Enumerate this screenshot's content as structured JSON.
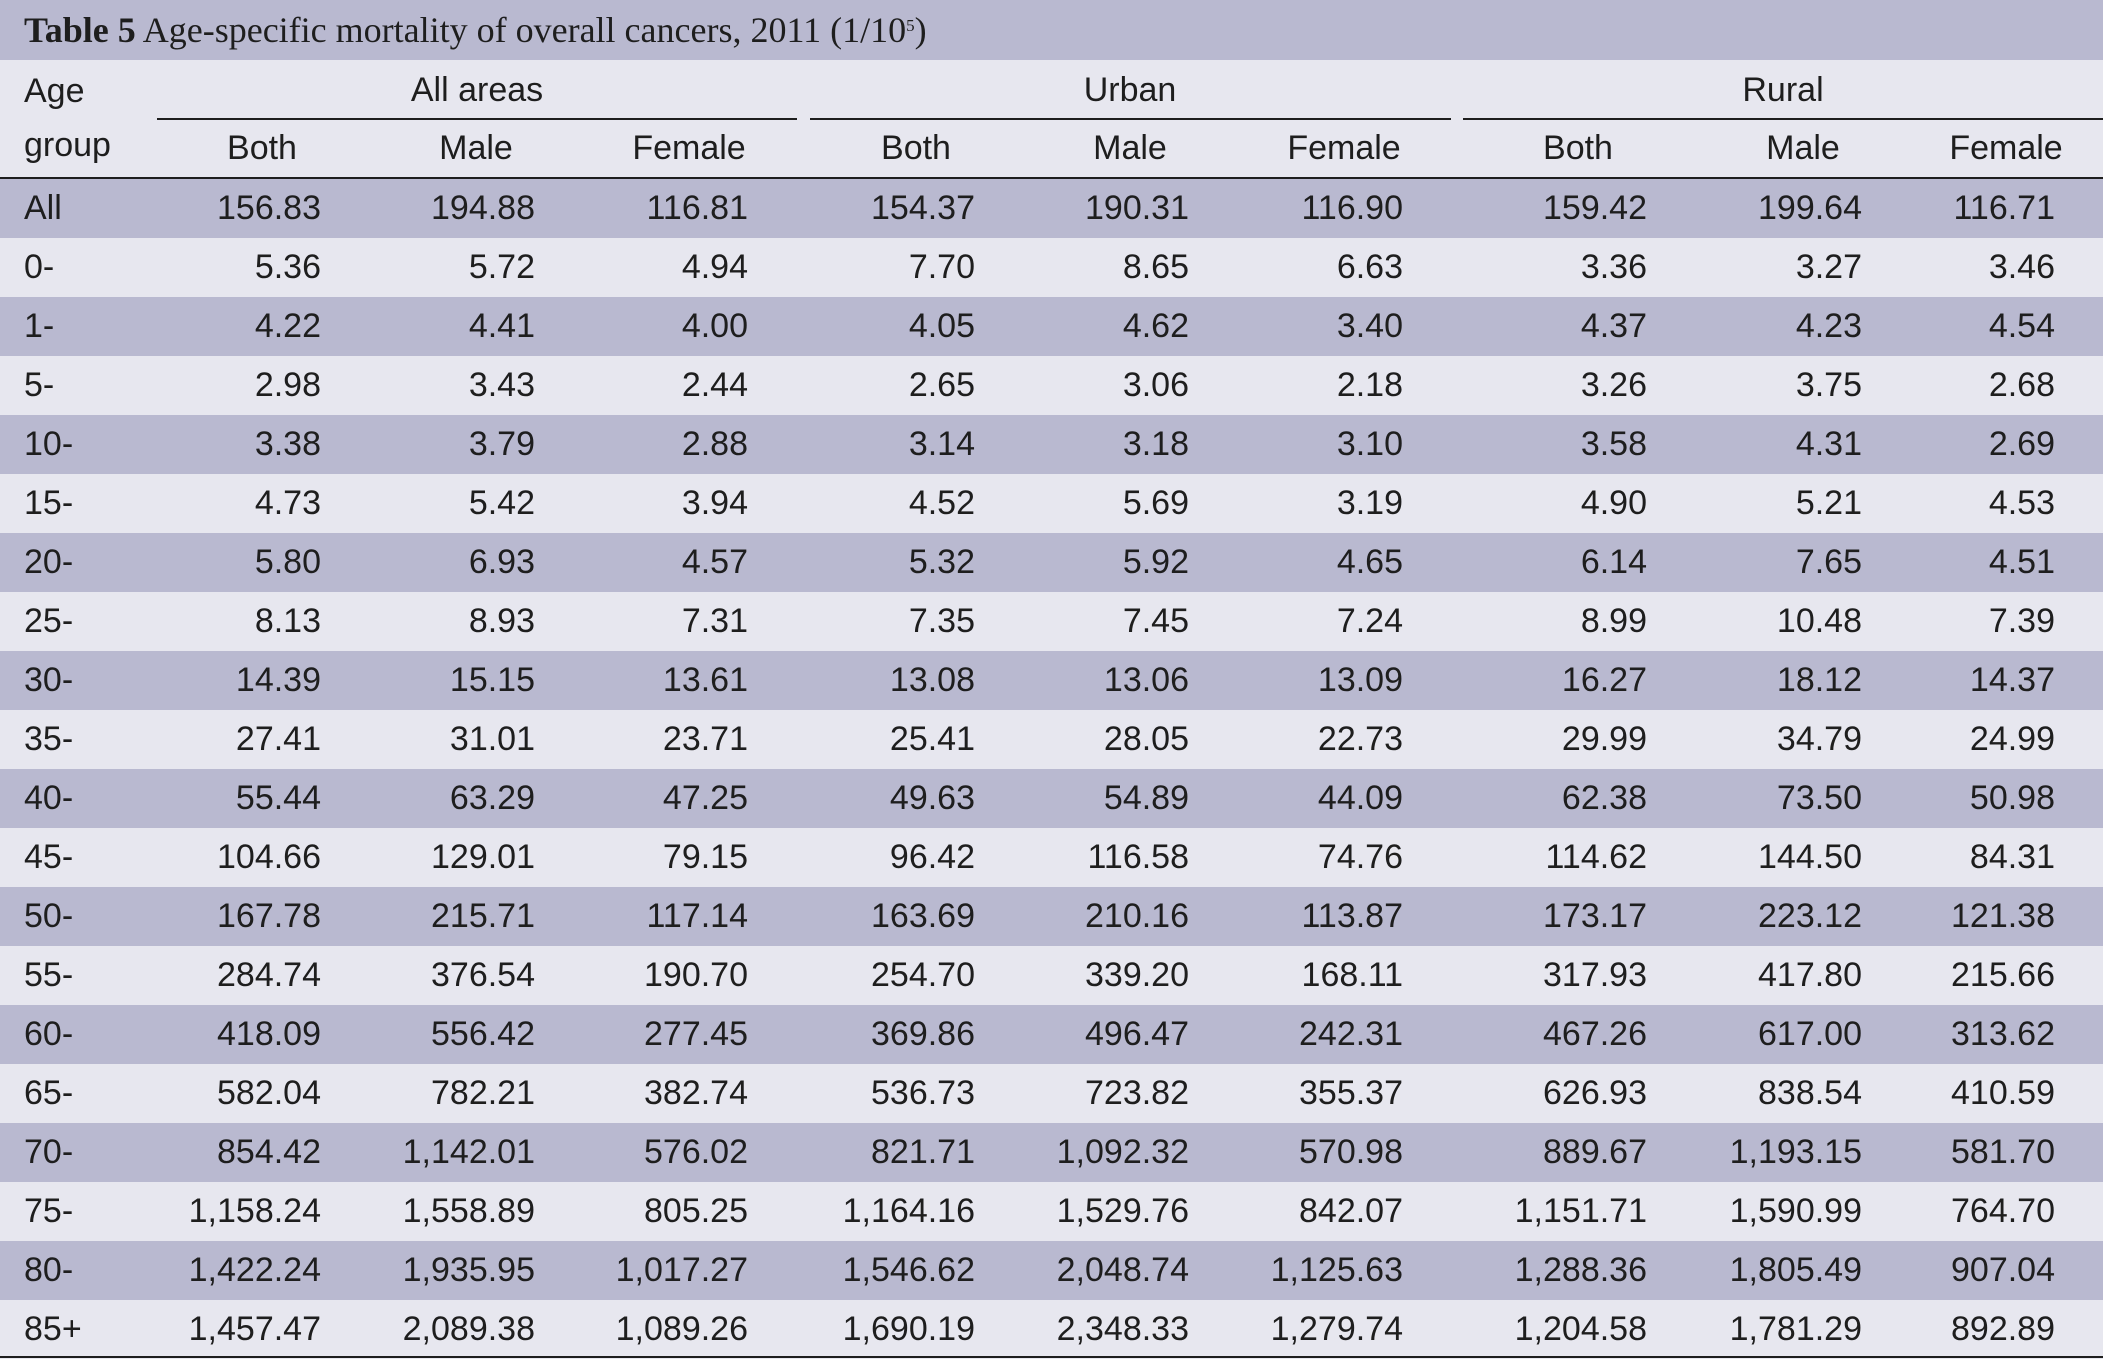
{
  "table": {
    "caption_number": "Table 5",
    "caption_text": "Age-specific mortality of overall cancers, 2011 (1/10",
    "caption_sup": "5",
    "caption_close": ")",
    "row_header_line1": "Age",
    "row_header_line2": "group",
    "groups": [
      "All areas",
      "Urban",
      "Rural"
    ],
    "subheaders": [
      "Both",
      "Male",
      "Female",
      "Both",
      "Male",
      "Female",
      "Both",
      "Male",
      "Female"
    ],
    "rows": [
      {
        "label": "All",
        "values": [
          "156.83",
          "194.88",
          "116.81",
          "154.37",
          "190.31",
          "116.90",
          "159.42",
          "199.64",
          "116.71"
        ]
      },
      {
        "label": "0-",
        "values": [
          "5.36",
          "5.72",
          "4.94",
          "7.70",
          "8.65",
          "6.63",
          "3.36",
          "3.27",
          "3.46"
        ]
      },
      {
        "label": "1-",
        "values": [
          "4.22",
          "4.41",
          "4.00",
          "4.05",
          "4.62",
          "3.40",
          "4.37",
          "4.23",
          "4.54"
        ]
      },
      {
        "label": "5-",
        "values": [
          "2.98",
          "3.43",
          "2.44",
          "2.65",
          "3.06",
          "2.18",
          "3.26",
          "3.75",
          "2.68"
        ]
      },
      {
        "label": "10-",
        "values": [
          "3.38",
          "3.79",
          "2.88",
          "3.14",
          "3.18",
          "3.10",
          "3.58",
          "4.31",
          "2.69"
        ]
      },
      {
        "label": "15-",
        "values": [
          "4.73",
          "5.42",
          "3.94",
          "4.52",
          "5.69",
          "3.19",
          "4.90",
          "5.21",
          "4.53"
        ]
      },
      {
        "label": "20-",
        "values": [
          "5.80",
          "6.93",
          "4.57",
          "5.32",
          "5.92",
          "4.65",
          "6.14",
          "7.65",
          "4.51"
        ]
      },
      {
        "label": "25-",
        "values": [
          "8.13",
          "8.93",
          "7.31",
          "7.35",
          "7.45",
          "7.24",
          "8.99",
          "10.48",
          "7.39"
        ]
      },
      {
        "label": "30-",
        "values": [
          "14.39",
          "15.15",
          "13.61",
          "13.08",
          "13.06",
          "13.09",
          "16.27",
          "18.12",
          "14.37"
        ]
      },
      {
        "label": "35-",
        "values": [
          "27.41",
          "31.01",
          "23.71",
          "25.41",
          "28.05",
          "22.73",
          "29.99",
          "34.79",
          "24.99"
        ]
      },
      {
        "label": "40-",
        "values": [
          "55.44",
          "63.29",
          "47.25",
          "49.63",
          "54.89",
          "44.09",
          "62.38",
          "73.50",
          "50.98"
        ]
      },
      {
        "label": "45-",
        "values": [
          "104.66",
          "129.01",
          "79.15",
          "96.42",
          "116.58",
          "74.76",
          "114.62",
          "144.50",
          "84.31"
        ]
      },
      {
        "label": "50-",
        "values": [
          "167.78",
          "215.71",
          "117.14",
          "163.69",
          "210.16",
          "113.87",
          "173.17",
          "223.12",
          "121.38"
        ]
      },
      {
        "label": "55-",
        "values": [
          "284.74",
          "376.54",
          "190.70",
          "254.70",
          "339.20",
          "168.11",
          "317.93",
          "417.80",
          "215.66"
        ]
      },
      {
        "label": "60-",
        "values": [
          "418.09",
          "556.42",
          "277.45",
          "369.86",
          "496.47",
          "242.31",
          "467.26",
          "617.00",
          "313.62"
        ]
      },
      {
        "label": "65-",
        "values": [
          "582.04",
          "782.21",
          "382.74",
          "536.73",
          "723.82",
          "355.37",
          "626.93",
          "838.54",
          "410.59"
        ]
      },
      {
        "label": "70-",
        "values": [
          "854.42",
          "1,142.01",
          "576.02",
          "821.71",
          "1,092.32",
          "570.98",
          "889.67",
          "1,193.15",
          "581.70"
        ]
      },
      {
        "label": "75-",
        "values": [
          "1,158.24",
          "1,558.89",
          "805.25",
          "1,164.16",
          "1,529.76",
          "842.07",
          "1,151.71",
          "1,590.99",
          "764.70"
        ]
      },
      {
        "label": "80-",
        "values": [
          "1,422.24",
          "1,935.95",
          "1,017.27",
          "1,546.62",
          "2,048.74",
          "1,125.63",
          "1,288.36",
          "1,805.49",
          "907.04"
        ]
      },
      {
        "label": "85+",
        "values": [
          "1,457.47",
          "2,089.38",
          "1,089.26",
          "1,690.19",
          "2,348.33",
          "1,279.74",
          "1,204.58",
          "1,781.29",
          "892.89"
        ]
      }
    ]
  },
  "colors": {
    "band_dark": "#b9b9d0",
    "band_light": "#e7e7ef",
    "text": "#1e1e1e"
  }
}
